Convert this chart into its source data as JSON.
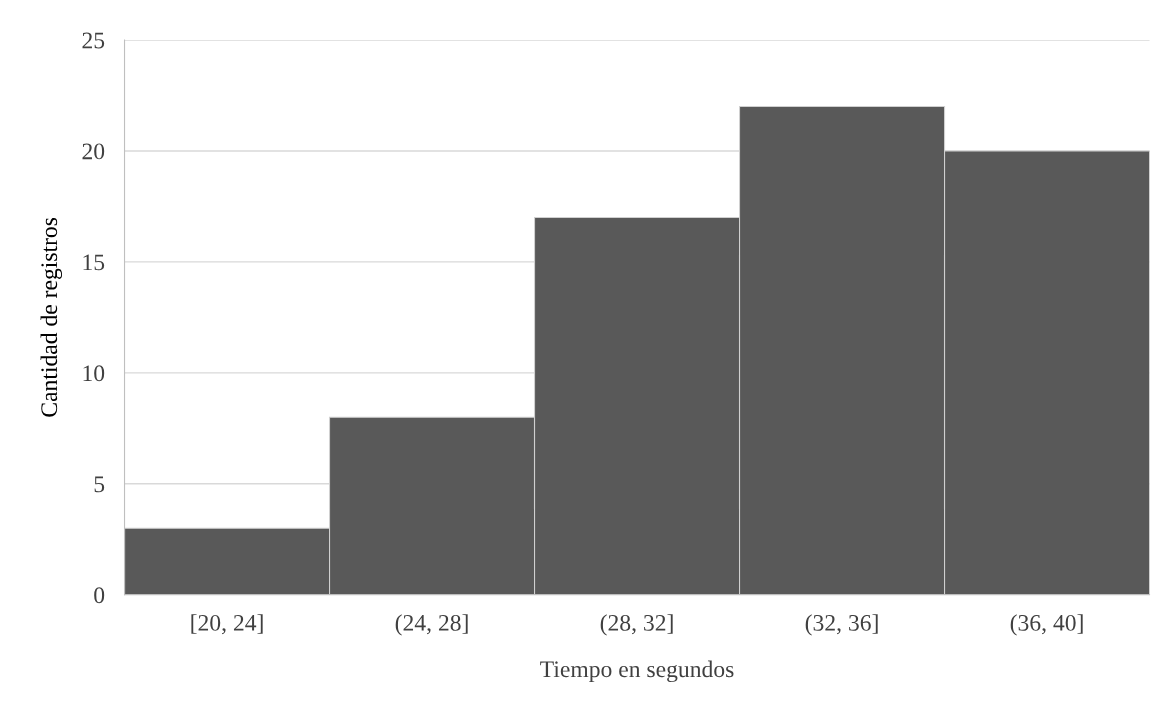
{
  "chart_data": {
    "type": "bar",
    "xlabel": "Tiempo en segundos",
    "ylabel": "Cantidad de registros",
    "categories": [
      "[20, 24]",
      "(24, 28]",
      "(28, 32]",
      "(32, 36]",
      "(36, 40]"
    ],
    "values": [
      3,
      8,
      17,
      22,
      20
    ],
    "color": "#595959",
    "ylim": [
      0,
      25
    ],
    "yticks": [
      0,
      5,
      10,
      15,
      20,
      25
    ],
    "grid": "y",
    "legend": false
  }
}
